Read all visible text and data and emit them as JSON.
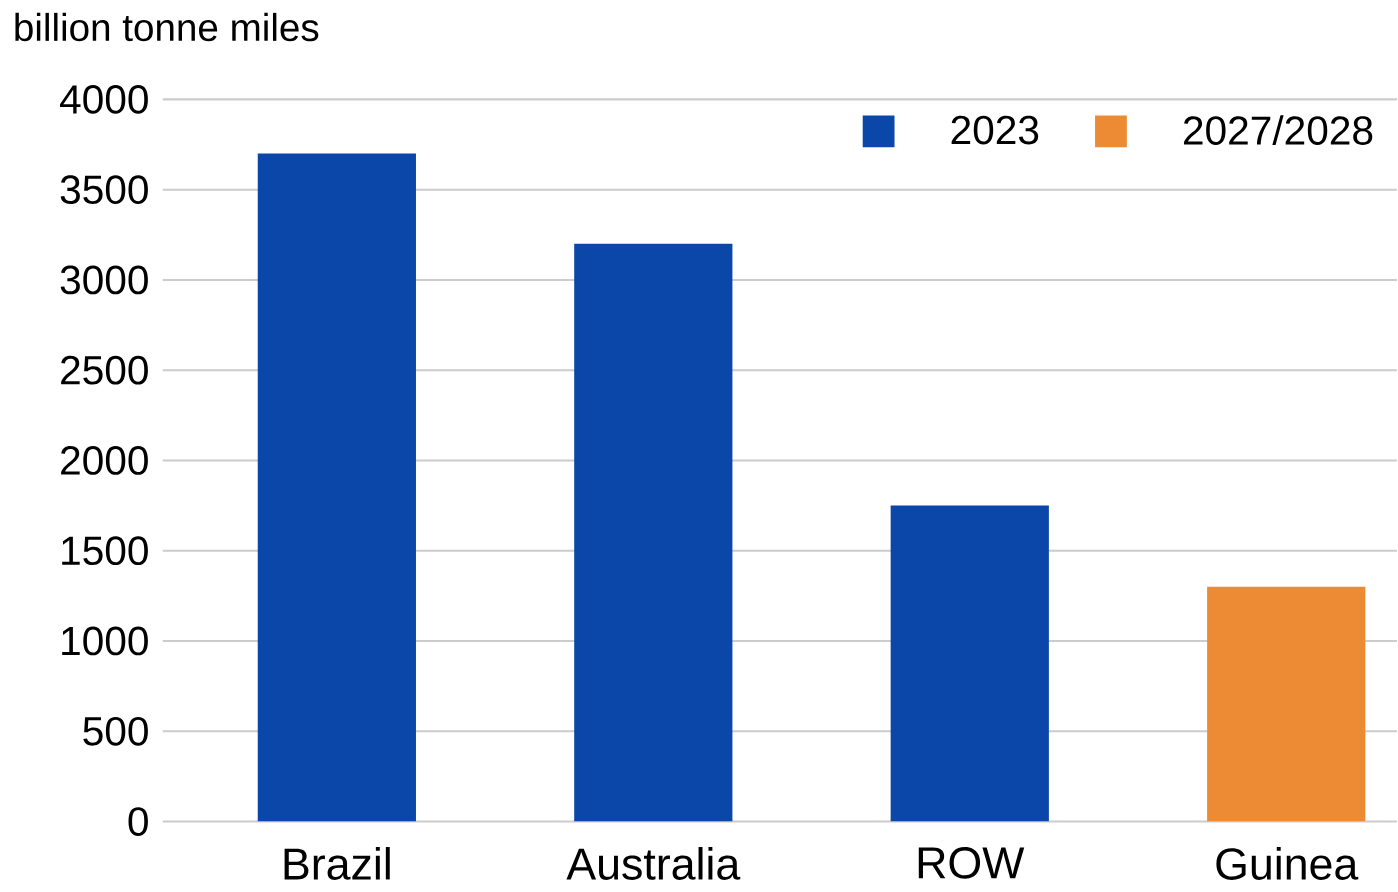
{
  "chart_data": {
    "type": "bar",
    "ylabel": "billion tonne miles",
    "categories": [
      "Brazil",
      "Australia",
      "ROW",
      "Guinea"
    ],
    "series": [
      {
        "name": "2023",
        "color": "#0a47a9",
        "values": [
          3700,
          3200,
          1750,
          null
        ]
      },
      {
        "name": "2027/2028",
        "color": "#ed8b35",
        "values": [
          null,
          null,
          null,
          1300
        ]
      }
    ],
    "ylim": [
      0,
      4000
    ],
    "yticks": [
      0,
      500,
      1000,
      1500,
      2000,
      2500,
      3000,
      3500,
      4000
    ],
    "grid": "y",
    "legend": "top right"
  }
}
